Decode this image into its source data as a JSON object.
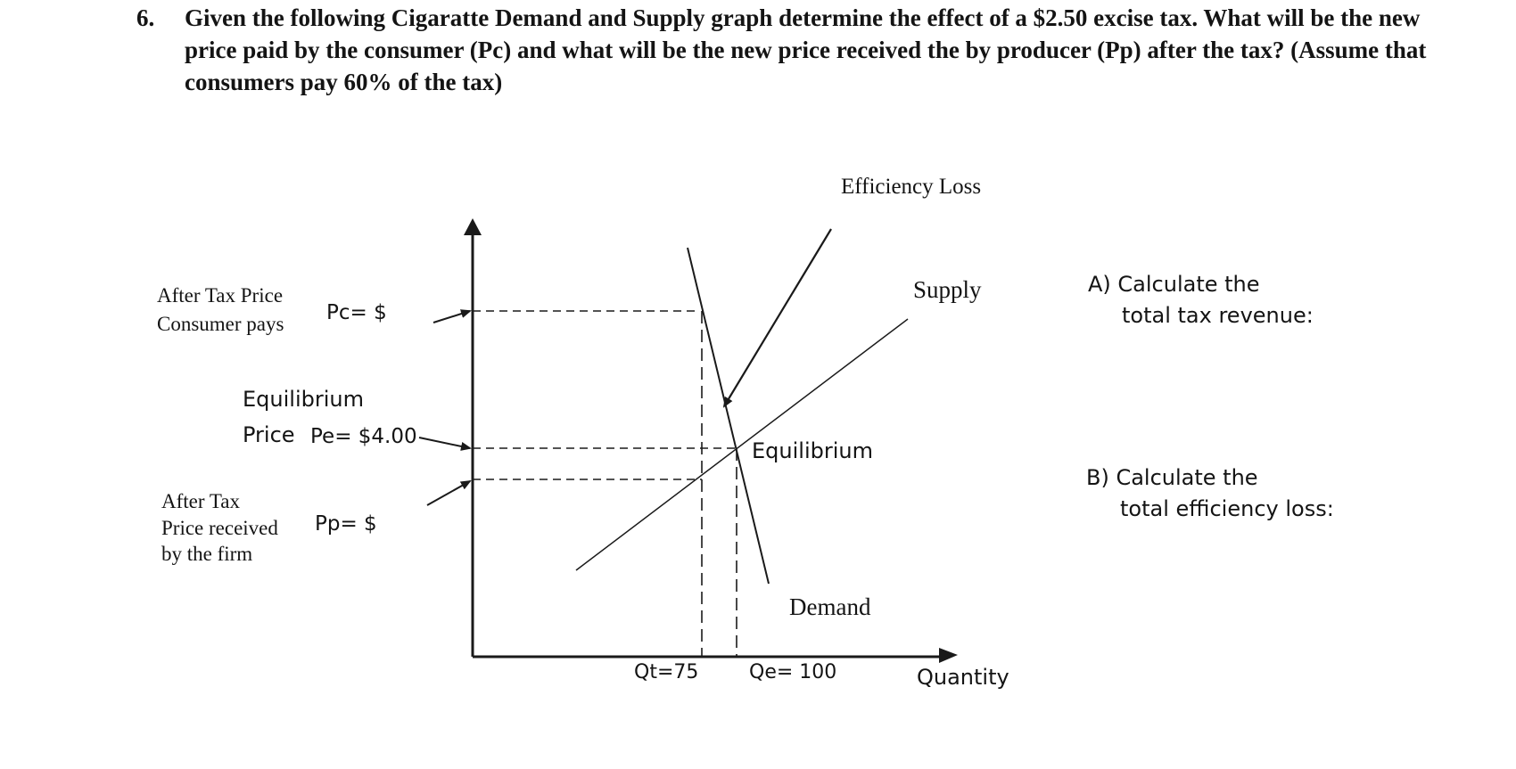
{
  "question": {
    "number": "6.",
    "text": "Given the following Cigaratte  Demand and Supply graph determine the effect of a $2.50 excise tax.  What will be the new price paid by the consumer (Pc) and what will be the new price received the by producer (Pp) after the tax? (Assume that consumers pay 60% of the tax)"
  },
  "graph": {
    "efficiency_loss_label": "Efficiency Loss",
    "supply_label": "Supply",
    "demand_label": "Demand",
    "equilibrium_label": "Equilibrium",
    "quantity_axis_label": "Quantity",
    "qt_label": "Qt=75",
    "qe_label": "Qe= 100",
    "pc": {
      "line1": "After Tax Price",
      "line2": "Consumer pays",
      "value_label": "Pc= $"
    },
    "pe": {
      "line1": "Equilibrium",
      "line2_prefix": "Price",
      "value_label": "Pe= $4.00"
    },
    "pp": {
      "line1": "After Tax",
      "line2": "Price received",
      "line3": "by the firm",
      "value_label": "Pp= $"
    }
  },
  "questions": {
    "a_line1": "A) Calculate the",
    "a_line2": "total tax revenue:",
    "b_line1": "B) Calculate the",
    "b_line2": "total efficiency loss:"
  }
}
